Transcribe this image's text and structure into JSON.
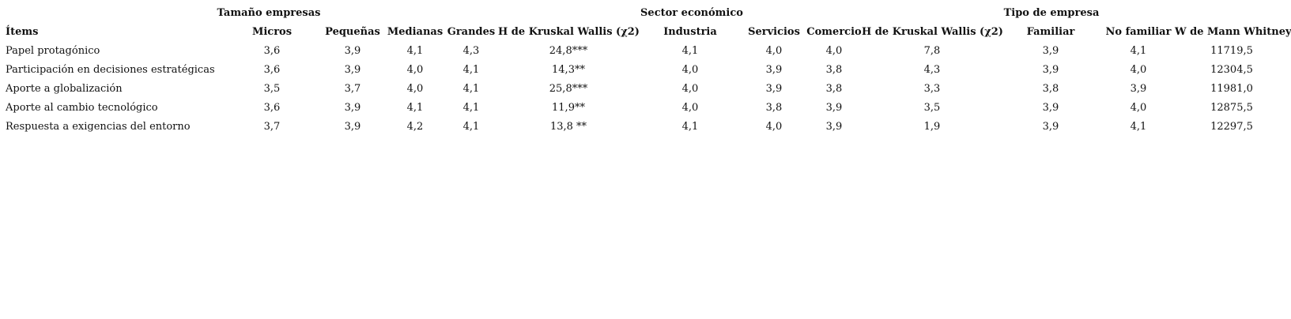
{
  "table": {
    "groups": [
      "Tamaño empresas",
      "Sector económico",
      "Tipo de empresa"
    ],
    "headers": [
      "Ítems",
      "Micros",
      "Pequeñas",
      "Medianas",
      "Grandes",
      "H de Kruskal Wallis (χ2)",
      "Industria",
      "Servicios",
      "Comercio",
      "H de Kruskal Wallis (χ2)",
      "Familiar",
      "No familiar",
      "W de Mann Whitney"
    ],
    "rows": [
      [
        "Papel protagónico",
        "3,6",
        "3,9",
        "4,1",
        "4,3",
        "24,8***",
        "4,1",
        "4,0",
        "4,0",
        "7,8",
        "3,9",
        "4,1",
        "11719,5"
      ],
      [
        "Participación en decisiones estratégicas",
        "3,6",
        "3,9",
        "4,0",
        "4,1",
        "14,3**",
        "4,0",
        "3,9",
        "3,8",
        "4,3",
        "3,9",
        "4,0",
        "12304,5"
      ],
      [
        "Aporte a globalización",
        "3,5",
        "3,7",
        "4,0",
        "4,1",
        "25,8***",
        "4,0",
        "3,9",
        "3,8",
        "3,3",
        "3,8",
        "3,9",
        "11981,0"
      ],
      [
        "Aporte al cambio tecnológico",
        "3,6",
        "3,9",
        "4,1",
        "4,1",
        "11,9**",
        "4,0",
        "3,8",
        "3,9",
        "3,5",
        "3,9",
        "4,0",
        "12875,5"
      ],
      [
        "Respuesta a exigencias del entorno",
        "3,7",
        "3,9",
        "4,2",
        "4,1",
        "13,8 **",
        "4,1",
        "4,0",
        "3,9",
        "1,9",
        "3,9",
        "4,1",
        "12297,5"
      ]
    ]
  }
}
